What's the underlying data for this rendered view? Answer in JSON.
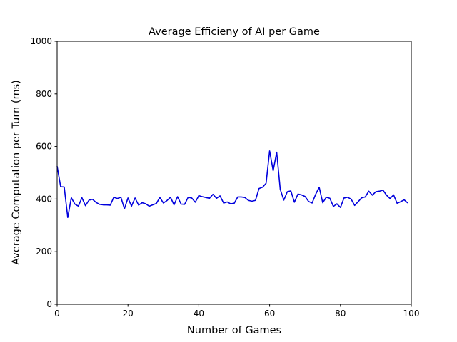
{
  "chart_data": {
    "type": "line",
    "title": "Average Efficieny of AI per Game",
    "xlabel": "Number of Games",
    "ylabel": "Average Computation per Turn (ms)",
    "xlim": [
      0,
      100
    ],
    "ylim": [
      0,
      1000
    ],
    "xticks": [
      "0",
      "20",
      "40",
      "60",
      "80",
      "100"
    ],
    "yticks": [
      "0",
      "200",
      "400",
      "600",
      "800",
      "1000"
    ],
    "grid": false,
    "line_color": "#0000dd",
    "series": [
      {
        "x": [
          0,
          1,
          2,
          3,
          4,
          5,
          6,
          7,
          8,
          9,
          10,
          11,
          12,
          13,
          14,
          15,
          16,
          17,
          18,
          19,
          20,
          21,
          22,
          23,
          24,
          25,
          26,
          27,
          28,
          29,
          30,
          31,
          32,
          33,
          34,
          35,
          36,
          37,
          38,
          39,
          40,
          41,
          42,
          43,
          44,
          45,
          46,
          47,
          48,
          49,
          50,
          51,
          52,
          53,
          54,
          55,
          56,
          57,
          58,
          59,
          60,
          61,
          62,
          63,
          64,
          65,
          66,
          67,
          68,
          69,
          70,
          71,
          72,
          73,
          74,
          75,
          76,
          77,
          78,
          79,
          80,
          81,
          82,
          83,
          84,
          85,
          86,
          87,
          88,
          89,
          90,
          91,
          92,
          93,
          94,
          95,
          96,
          97,
          98,
          99
        ],
        "values": [
          525,
          447,
          446,
          330,
          405,
          381,
          373,
          405,
          375,
          396,
          399,
          387,
          380,
          378,
          378,
          377,
          407,
          402,
          407,
          363,
          404,
          373,
          404,
          377,
          386,
          382,
          373,
          378,
          383,
          406,
          385,
          394,
          407,
          378,
          409,
          381,
          380,
          407,
          404,
          388,
          413,
          409,
          406,
          403,
          418,
          403,
          412,
          385,
          389,
          382,
          384,
          408,
          408,
          406,
          395,
          392,
          395,
          440,
          445,
          460,
          583,
          508,
          578,
          437,
          396,
          428,
          431,
          388,
          419,
          416,
          410,
          391,
          385,
          418,
          445,
          386,
          407,
          403,
          372,
          382,
          368,
          404,
          407,
          400,
          376,
          390,
          405,
          408,
          430,
          415,
          428,
          430,
          434,
          415,
          402,
          416,
          384,
          390,
          397,
          385
        ]
      }
    ]
  }
}
